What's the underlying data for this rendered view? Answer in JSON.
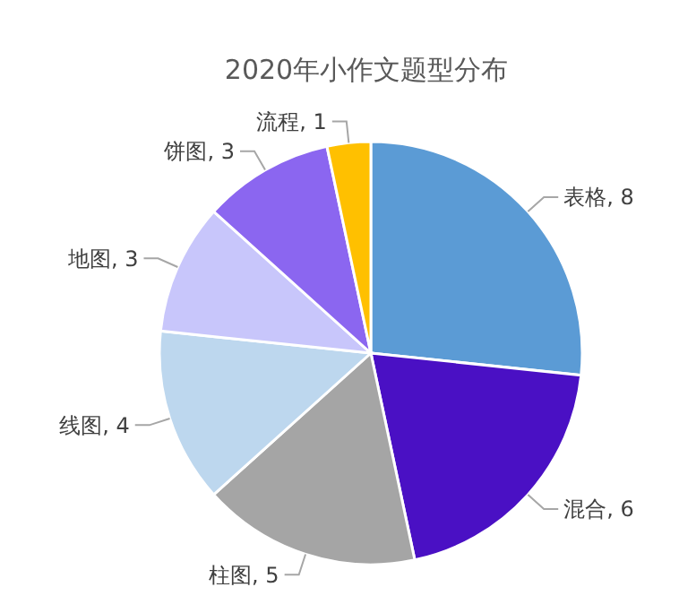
{
  "chart_data": {
    "type": "pie",
    "title": "2020年小作文题型分布",
    "categories": [
      "表格",
      "混合",
      "柱图",
      "线图",
      "地图",
      "饼图",
      "流程"
    ],
    "values": [
      8,
      6,
      5,
      4,
      3,
      3,
      1
    ],
    "colors": [
      "#5b9bd5",
      "#4a10c4",
      "#a5a5a5",
      "#bdd7ee",
      "#c8c6fb",
      "#8b66f0",
      "#ffc000"
    ],
    "value_labels": [
      ", 8",
      ", 6",
      ", 5",
      ", 4",
      ", 3",
      ", 3",
      ", 1"
    ]
  }
}
